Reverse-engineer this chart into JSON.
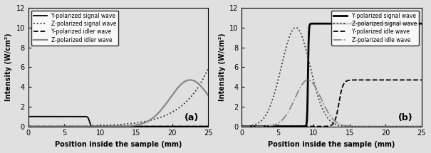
{
  "title_a": "(a)",
  "title_b": "(b)",
  "xlabel": "Position inside the sample (mm)",
  "ylabel": "Intensity (W/cm²)",
  "xlim": [
    0,
    25
  ],
  "ylim": [
    0,
    12
  ],
  "yticks": [
    0,
    2,
    4,
    6,
    8,
    10,
    12
  ],
  "xticks": [
    0,
    5,
    10,
    15,
    20,
    25
  ],
  "legend_a": [
    "Y-polarized signal wave",
    "Z-polarized signal wave",
    "Y-polarized idler wave",
    "Z-polarized idler wave"
  ],
  "legend_b": [
    "Y-polarized signal wave",
    "Z-polarized signal wave",
    "Y-polarized idle wave",
    "Z-polarized idle wave"
  ],
  "background": "#e0e0e0"
}
